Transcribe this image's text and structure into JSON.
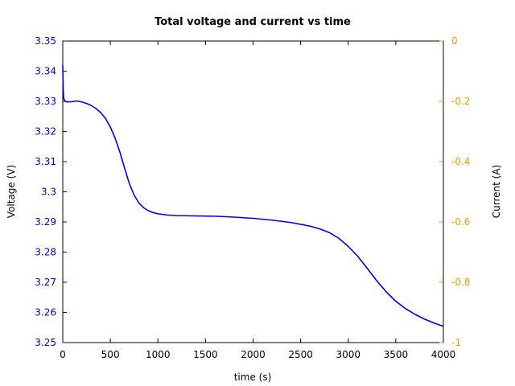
{
  "chart_data": {
    "type": "line",
    "title": "Total voltage and current vs time",
    "xlabel": "time (s)",
    "ylabel": "Voltage (V)",
    "y2label": "Current (A)",
    "xlim": [
      0,
      4000
    ],
    "ylim": [
      3.25,
      3.35
    ],
    "y2lim": [
      -1,
      0
    ],
    "xticks": [
      0,
      500,
      1000,
      1500,
      2000,
      2500,
      3000,
      3500,
      4000
    ],
    "xtick_labels": [
      "0",
      "500",
      "1000",
      "1500",
      "2000",
      "2500",
      "3000",
      "3500",
      "4000"
    ],
    "yticks": [
      3.25,
      3.26,
      3.27,
      3.28,
      3.29,
      3.3,
      3.31,
      3.32,
      3.33,
      3.34,
      3.35
    ],
    "ytick_labels": [
      "3.25",
      "3.26",
      "3.27",
      "3.28",
      "3.29",
      "3.3",
      "3.31",
      "3.32",
      "3.33",
      "3.34",
      "3.35"
    ],
    "y2ticks": [
      0,
      -0.2,
      -0.4,
      -0.6,
      -0.8,
      -1
    ],
    "y2tick_labels": [
      "0",
      "-0.2",
      "-0.4",
      "-0.6",
      "-0.8",
      "-1"
    ],
    "grid": false,
    "colors": {
      "voltage": "#0000dd",
      "y_axis": "#0000cc",
      "y2_axis": "#e69f00"
    },
    "series": [
      {
        "axis": "y",
        "x": [
          0,
          5,
          10,
          20,
          30,
          50,
          100,
          150,
          200,
          250,
          300,
          350,
          400,
          450,
          500,
          550,
          600,
          650,
          700,
          750,
          800,
          850,
          900,
          950,
          1000,
          1100,
          1200,
          1400,
          1600,
          1800,
          2000,
          2200,
          2400,
          2600,
          2700,
          2800,
          2900,
          3000,
          3100,
          3200,
          3300,
          3400,
          3500,
          3600,
          3700,
          3800,
          3900,
          4000
        ],
        "values": [
          3.342,
          3.334,
          3.331,
          3.3303,
          3.3299,
          3.3298,
          3.3299,
          3.3301,
          3.3298,
          3.3293,
          3.3286,
          3.3276,
          3.3262,
          3.3243,
          3.3215,
          3.3178,
          3.3132,
          3.3078,
          3.3027,
          3.2989,
          3.2963,
          3.2947,
          3.2937,
          3.2931,
          3.2927,
          3.2923,
          3.2921,
          3.292,
          3.2919,
          3.2916,
          3.2912,
          3.2906,
          3.2898,
          3.2886,
          3.2877,
          3.2865,
          3.2846,
          3.2819,
          3.2786,
          3.2746,
          3.2705,
          3.2668,
          3.2637,
          3.2613,
          3.2594,
          3.2578,
          3.2565,
          3.2554
        ]
      }
    ]
  }
}
